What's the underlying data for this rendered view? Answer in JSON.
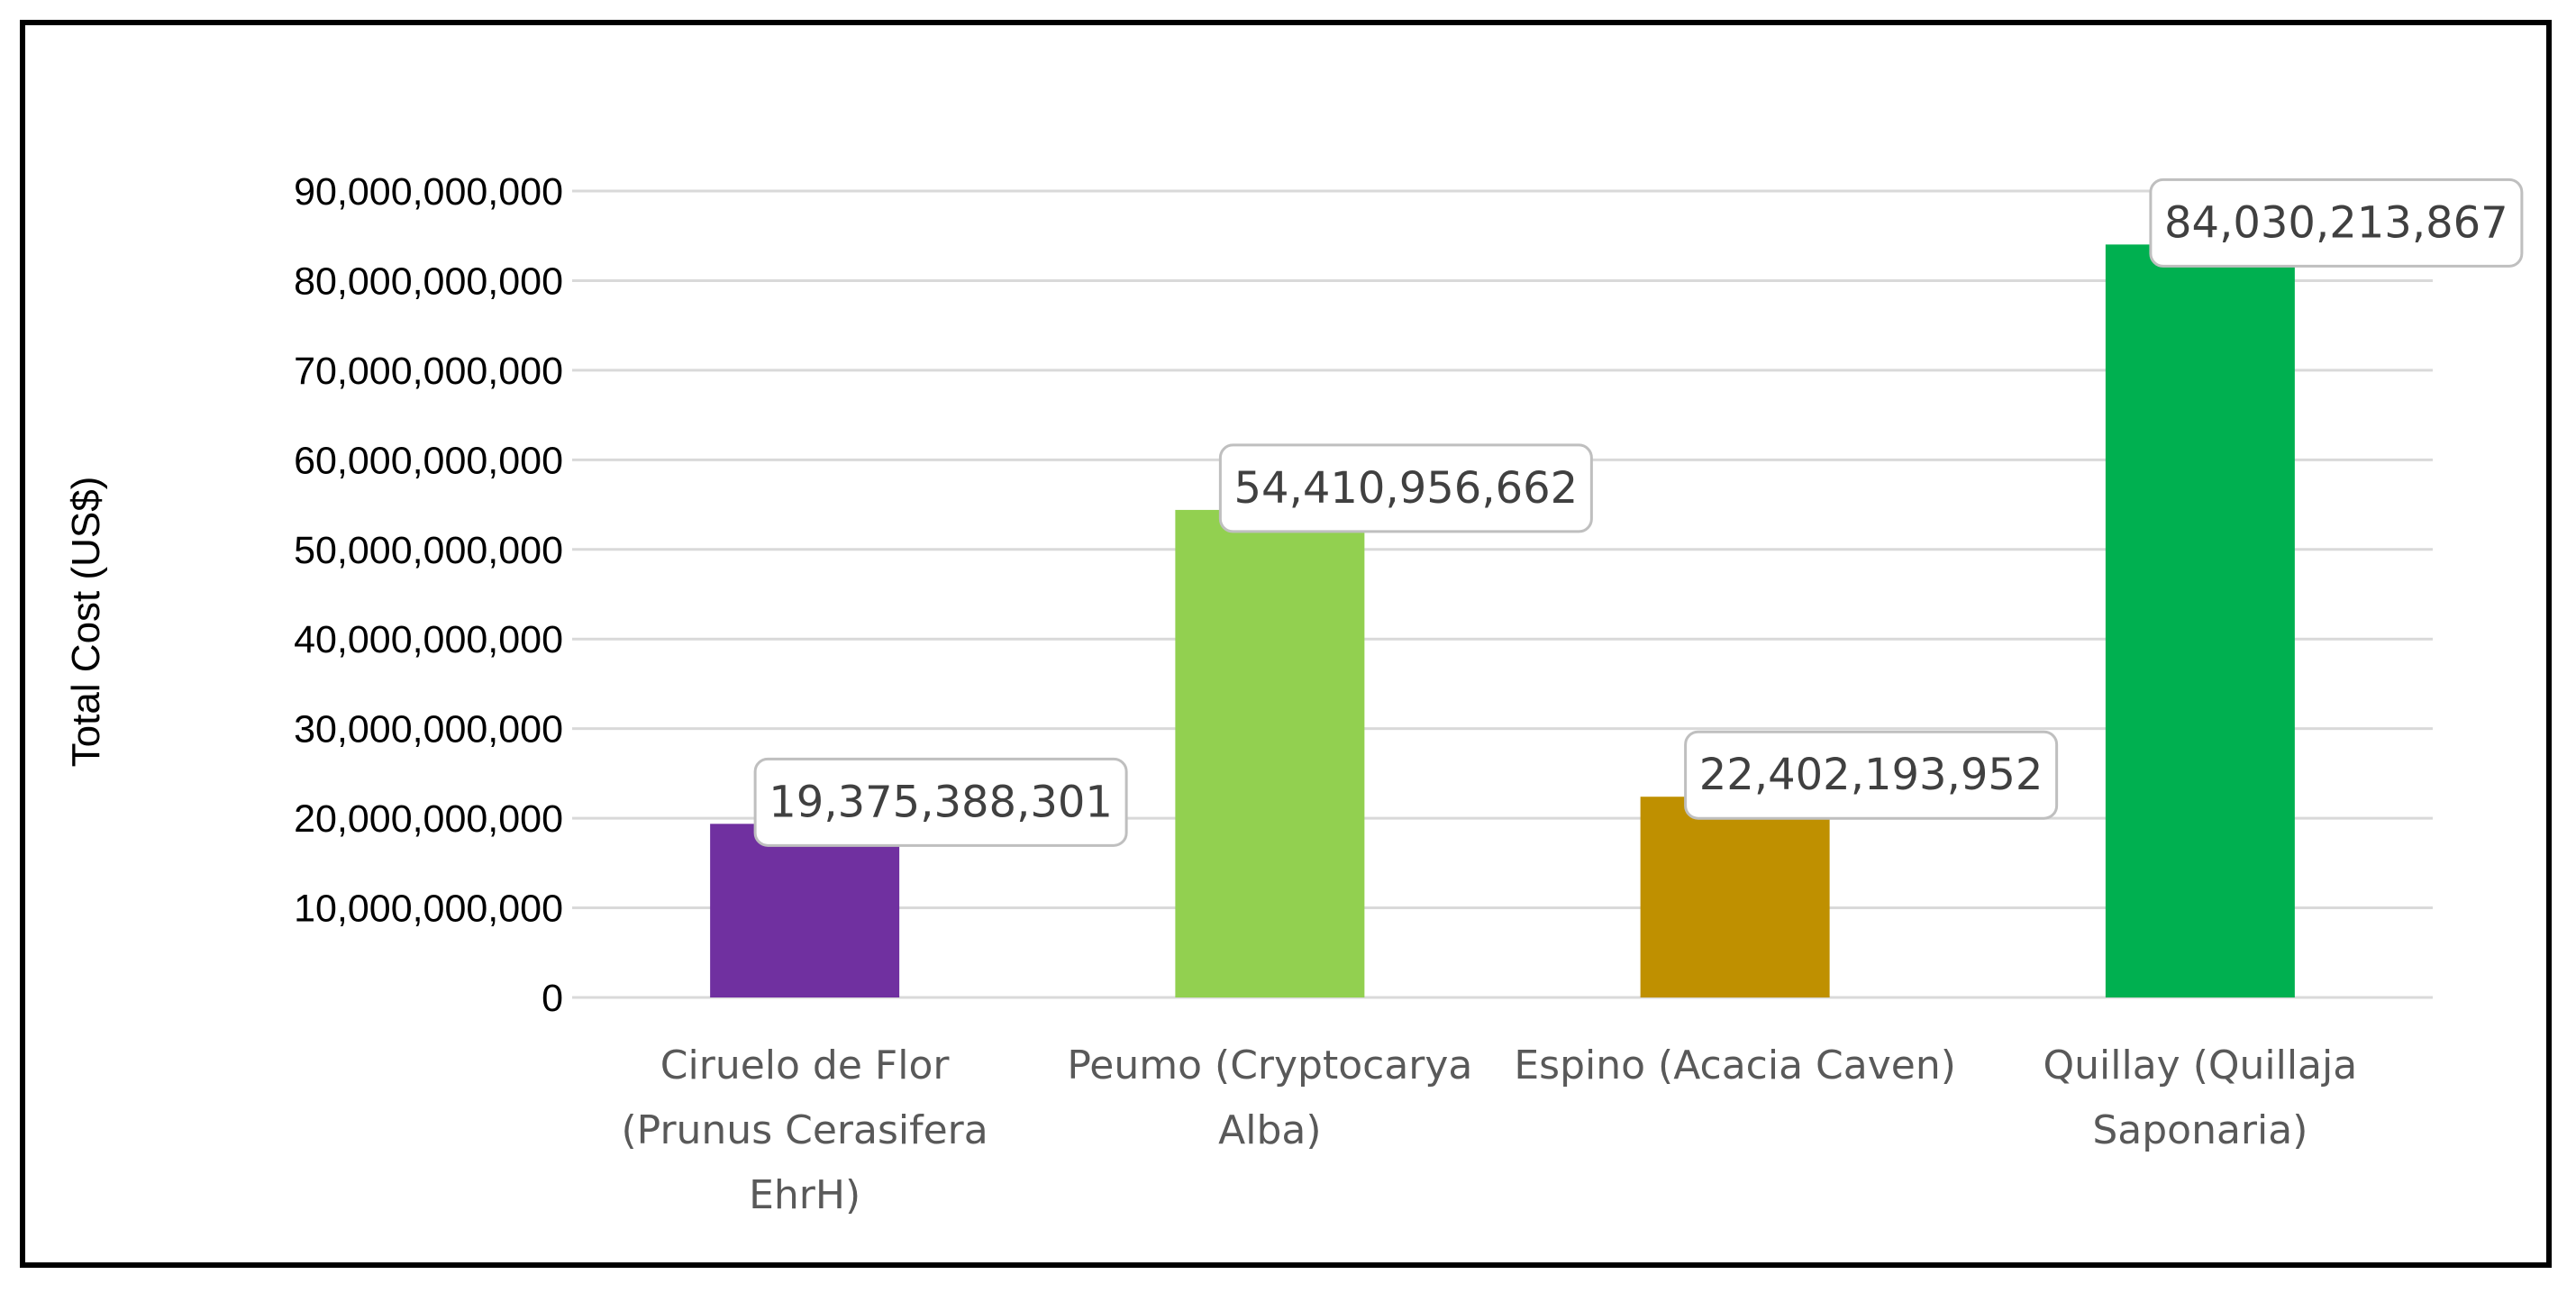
{
  "chart_data": {
    "type": "bar",
    "categories": [
      "Ciruelo de Flor (Prunus Cerasifera EhrH)",
      "Peumo (Cryptocarya Alba)",
      "Espino (Acacia Caven)",
      "Quillay (Quillaja Saponaria)"
    ],
    "category_lines": [
      [
        "Ciruelo de Flor",
        "(Prunus Cerasifera",
        "EhrH)"
      ],
      [
        "Peumo (Cryptocarya",
        "Alba)"
      ],
      [
        "Espino (Acacia Caven)"
      ],
      [
        "Quillay (Quillaja",
        "Saponaria)"
      ]
    ],
    "values": [
      19375388301,
      54410956662,
      22402193952,
      84030213867
    ],
    "data_labels": [
      "19,375,388,301",
      "54,410,956,662",
      "22,402,193,952",
      "84,030,213,867"
    ],
    "colors": [
      "#7030A0",
      "#92D050",
      "#BF9000",
      "#00B050"
    ],
    "ylabel": "Total Cost (US$)",
    "xlabel": "",
    "title": "",
    "ylim": [
      0,
      90000000000
    ],
    "yticks": [
      0,
      10000000000,
      20000000000,
      30000000000,
      40000000000,
      50000000000,
      60000000000,
      70000000000,
      80000000000,
      90000000000
    ],
    "ytick_labels": [
      "0",
      "10,000,000,000",
      "20,000,000,000",
      "30,000,000,000",
      "40,000,000,000",
      "50,000,000,000",
      "60,000,000,000",
      "70,000,000,000",
      "80,000,000,000",
      "90,000,000,000"
    ],
    "grid": true,
    "gridline_color": "#D9D9D9",
    "legend": "none"
  }
}
